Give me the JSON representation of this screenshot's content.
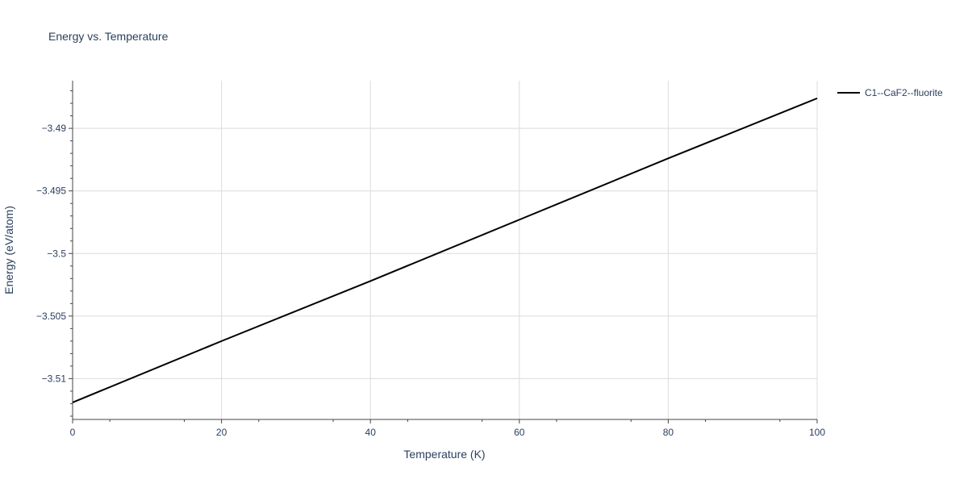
{
  "chart_data": {
    "type": "line",
    "title": "Energy vs. Temperature",
    "xlabel": "Temperature (K)",
    "ylabel": "Energy (eV/atom)",
    "xlim": [
      0,
      100
    ],
    "ylim": [
      -3.51326,
      -3.48619
    ],
    "xticks": [
      0,
      20,
      40,
      60,
      80,
      100
    ],
    "xtick_labels": [
      "0",
      "20",
      "40",
      "60",
      "80",
      "100"
    ],
    "yticks": [
      -3.51,
      -3.505,
      -3.5,
      -3.495,
      -3.49
    ],
    "ytick_labels": [
      "−3.51",
      "−3.505",
      "−3.5",
      "−3.495",
      "−3.49"
    ],
    "grid": true,
    "legend_position": "top-right",
    "series": [
      {
        "name": "C1--CaF2--fluorite",
        "color": "#000000",
        "x": [
          0,
          20,
          40,
          60,
          80,
          100
        ],
        "y": [
          -3.5119,
          -3.507,
          -3.5022,
          -3.4973,
          -3.4924,
          -3.4876
        ]
      }
    ]
  }
}
